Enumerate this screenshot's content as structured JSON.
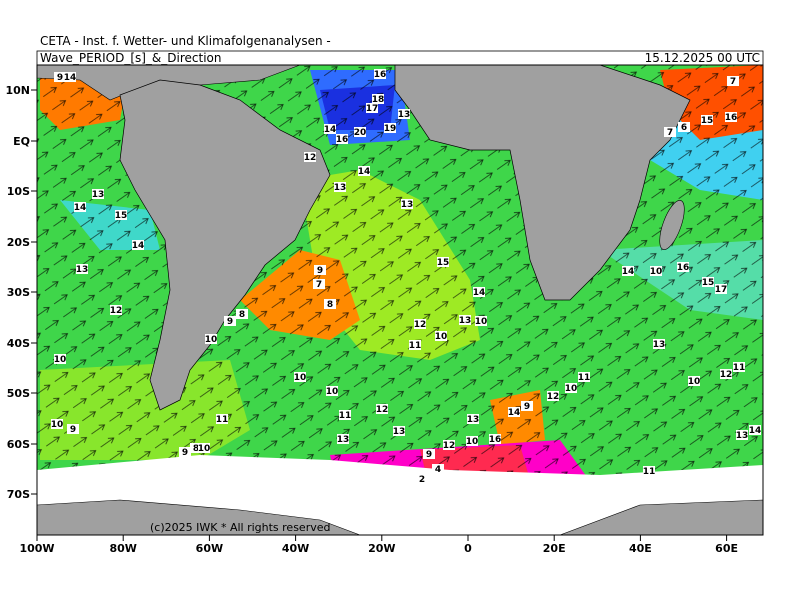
{
  "header": {
    "title": "CETA - Inst. f. Wetter- und Klimafolgenanalysen -",
    "subtitle": "Wave_PERIOD_[s]_&_Direction",
    "date": "15.12.2025 00 UTC"
  },
  "lat_labels": [
    "10N",
    "EQ",
    "10S",
    "20S",
    "30S",
    "40S",
    "50S",
    "60S",
    "70S"
  ],
  "lon_labels": [
    "100W",
    "80W",
    "60W",
    "40W",
    "20W",
    "0",
    "20E",
    "40E",
    "60E"
  ],
  "copyright": "(c)2025 IWK * All rights reserved",
  "labels": [
    9,
    14,
    16,
    18,
    17,
    13,
    14,
    20,
    19,
    16,
    12,
    14,
    13,
    13,
    13,
    14,
    15,
    14,
    13,
    15,
    9,
    7,
    14,
    8,
    12,
    8,
    9,
    12,
    13,
    10,
    10,
    11,
    10,
    10,
    10,
    10,
    11,
    11,
    12,
    10,
    9,
    13,
    13,
    14,
    9,
    12,
    10,
    11,
    12,
    13,
    10,
    16,
    14,
    10,
    16,
    15,
    17,
    13,
    10,
    12,
    11,
    13,
    14,
    11,
    2,
    4,
    9,
    8,
    10,
    9,
    7,
    15,
    16,
    6,
    7
  ]
}
